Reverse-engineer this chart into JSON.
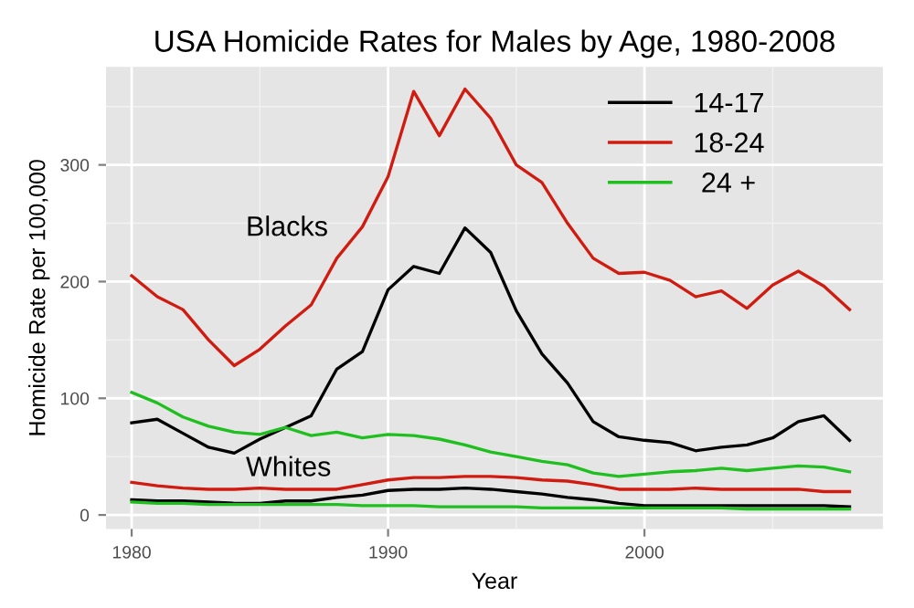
{
  "chart_data": {
    "type": "line",
    "title": "USA Homicide Rates for Males by Age, 1980-2008",
    "xlabel": "Year",
    "ylabel": "Homicide Rate per 100,000",
    "x": [
      1980,
      1981,
      1982,
      1983,
      1984,
      1985,
      1986,
      1987,
      1988,
      1989,
      1990,
      1991,
      1992,
      1993,
      1994,
      1995,
      1996,
      1997,
      1998,
      1999,
      2000,
      2001,
      2002,
      2003,
      2004,
      2005,
      2006,
      2007,
      2008
    ],
    "series": [
      {
        "name": "14-17",
        "color": "#000000",
        "values": [
          79,
          82,
          70,
          58,
          53,
          65,
          75,
          85,
          125,
          140,
          193,
          213,
          207,
          246,
          225,
          175,
          138,
          113,
          80,
          67,
          64,
          62,
          55,
          58,
          60,
          66,
          80,
          85,
          64
        ]
      },
      {
        "name": "18-24",
        "color": "#d01c10",
        "values": [
          205,
          187,
          176,
          150,
          128,
          142,
          162,
          180,
          220,
          247,
          290,
          363,
          325,
          365,
          340,
          300,
          285,
          250,
          220,
          207,
          208,
          201,
          187,
          192,
          177,
          197,
          209,
          196,
          176
        ]
      },
      {
        "name": " 24 +",
        "color": "#1fbf1f",
        "values": [
          105,
          96,
          84,
          76,
          71,
          69,
          75,
          68,
          71,
          66,
          69,
          68,
          65,
          60,
          54,
          50,
          46,
          43,
          36,
          33,
          35,
          37,
          38,
          40,
          38,
          40,
          42,
          41,
          37
        ]
      },
      {
        "color": "#000000",
        "values": [
          13,
          12,
          12,
          11,
          10,
          10,
          12,
          12,
          15,
          17,
          21,
          22,
          22,
          23,
          22,
          20,
          18,
          15,
          13,
          10,
          8,
          8,
          8,
          8,
          8,
          8,
          8,
          8,
          7
        ]
      },
      {
        "color": "#d01c10",
        "values": [
          28,
          25,
          23,
          22,
          22,
          23,
          22,
          22,
          22,
          26,
          30,
          32,
          32,
          33,
          33,
          32,
          30,
          29,
          26,
          22,
          22,
          22,
          23,
          22,
          22,
          22,
          22,
          20,
          20
        ]
      },
      {
        "color": "#1fbf1f",
        "values": [
          11,
          10,
          10,
          9,
          9,
          9,
          9,
          9,
          9,
          8,
          8,
          8,
          7,
          7,
          7,
          7,
          6,
          6,
          6,
          6,
          6,
          6,
          6,
          6,
          5,
          5,
          5,
          5,
          5
        ]
      }
    ],
    "annotations": [
      "Blacks",
      "Whites"
    ],
    "xlim": [
      1979,
      2009.3
    ],
    "xticks": [
      1980,
      1990,
      2000
    ],
    "ylim": [
      -12,
      384
    ],
    "yticks": [
      0,
      100,
      200,
      300
    ],
    "grid": true,
    "legend": "top right",
    "marker": "none",
    "line_style": "solid"
  }
}
